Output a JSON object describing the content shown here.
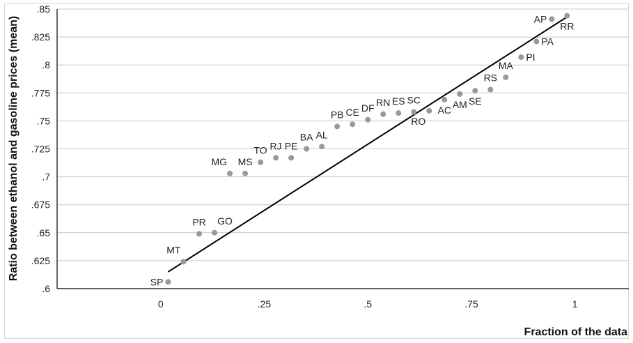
{
  "chart_data": {
    "type": "scatter",
    "title": "",
    "xlabel": "Fraction of the data",
    "ylabel": "Ratio between ethanol and gasoline prices (mean)",
    "xlim": [
      -0.25,
      1.13
    ],
    "ylim": [
      0.6,
      0.85
    ],
    "x_ticks": [
      {
        "value": 0,
        "label": "0"
      },
      {
        "value": 0.25,
        "label": ".25"
      },
      {
        "value": 0.5,
        "label": ".5"
      },
      {
        "value": 0.75,
        "label": ".75"
      },
      {
        "value": 1,
        "label": "1"
      }
    ],
    "y_ticks": [
      {
        "value": 0.6,
        "label": ".6"
      },
      {
        "value": 0.625,
        "label": ".625"
      },
      {
        "value": 0.65,
        "label": ".65"
      },
      {
        "value": 0.675,
        "label": ".675"
      },
      {
        "value": 0.7,
        "label": ".7"
      },
      {
        "value": 0.725,
        "label": ".725"
      },
      {
        "value": 0.75,
        "label": ".75"
      },
      {
        "value": 0.775,
        "label": ".775"
      },
      {
        "value": 0.8,
        "label": ".8"
      },
      {
        "value": 0.825,
        "label": ".825"
      },
      {
        "value": 0.85,
        "label": ".85"
      }
    ],
    "grid": {
      "horizontal": true,
      "vertical": false
    },
    "colors": {
      "points": "#999999",
      "fit_line": "#000000",
      "grid": "#c8c8c8"
    },
    "points": [
      {
        "label": "SP",
        "x": 0.018,
        "y": 0.606,
        "pos": "left"
      },
      {
        "label": "MT",
        "x": 0.055,
        "y": 0.624,
        "pos": "above-left"
      },
      {
        "label": "PR",
        "x": 0.093,
        "y": 0.649,
        "pos": "above"
      },
      {
        "label": "GO",
        "x": 0.13,
        "y": 0.65,
        "pos": "above-right"
      },
      {
        "label": "MG",
        "x": 0.167,
        "y": 0.703,
        "pos": "above-left"
      },
      {
        "label": "MS",
        "x": 0.204,
        "y": 0.703,
        "pos": "above"
      },
      {
        "label": "TO",
        "x": 0.241,
        "y": 0.713,
        "pos": "above"
      },
      {
        "label": "RJ",
        "x": 0.278,
        "y": 0.717,
        "pos": "above"
      },
      {
        "label": "PE",
        "x": 0.315,
        "y": 0.717,
        "pos": "above"
      },
      {
        "label": "BA",
        "x": 0.352,
        "y": 0.725,
        "pos": "above"
      },
      {
        "label": "AL",
        "x": 0.389,
        "y": 0.727,
        "pos": "above"
      },
      {
        "label": "PB",
        "x": 0.426,
        "y": 0.745,
        "pos": "above"
      },
      {
        "label": "CE",
        "x": 0.463,
        "y": 0.747,
        "pos": "above"
      },
      {
        "label": "DF",
        "x": 0.5,
        "y": 0.751,
        "pos": "above"
      },
      {
        "label": "RN",
        "x": 0.537,
        "y": 0.756,
        "pos": "above"
      },
      {
        "label": "ES",
        "x": 0.574,
        "y": 0.757,
        "pos": "above"
      },
      {
        "label": "SC",
        "x": 0.611,
        "y": 0.758,
        "pos": "above"
      },
      {
        "label": "RO",
        "x": 0.648,
        "y": 0.759,
        "pos": "below-left"
      },
      {
        "label": "AC",
        "x": 0.685,
        "y": 0.769,
        "pos": "below"
      },
      {
        "label": "AM",
        "x": 0.722,
        "y": 0.774,
        "pos": "below"
      },
      {
        "label": "SE",
        "x": 0.759,
        "y": 0.777,
        "pos": "below"
      },
      {
        "label": "RS",
        "x": 0.796,
        "y": 0.778,
        "pos": "above"
      },
      {
        "label": "MA",
        "x": 0.833,
        "y": 0.789,
        "pos": "above"
      },
      {
        "label": "PI",
        "x": 0.87,
        "y": 0.807,
        "pos": "right"
      },
      {
        "label": "PA",
        "x": 0.907,
        "y": 0.821,
        "pos": "right"
      },
      {
        "label": "AP",
        "x": 0.944,
        "y": 0.841,
        "pos": "left"
      },
      {
        "label": "RR",
        "x": 0.981,
        "y": 0.844,
        "pos": "below"
      }
    ],
    "fit_line": {
      "x": [
        0.018,
        0.981
      ],
      "y": [
        0.615,
        0.843
      ]
    }
  }
}
